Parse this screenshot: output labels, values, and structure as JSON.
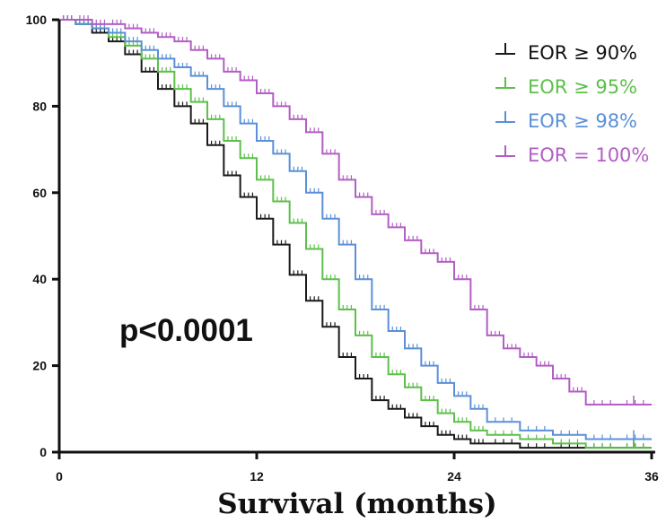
{
  "chart_data": {
    "type": "line",
    "subtype": "kaplan-meier-step",
    "xlabel": "Survival (months)",
    "ylabel": "",
    "xlim": [
      0,
      36
    ],
    "ylim": [
      0,
      100
    ],
    "xticks": [
      "0",
      "12",
      "24",
      "36"
    ],
    "yticks": [
      "0",
      "20",
      "40",
      "60",
      "80",
      "100"
    ],
    "grid": false,
    "legend_position": "top-right",
    "annotations": [
      "p<0.0001"
    ],
    "series": [
      {
        "name": "EOR ≥ 90%",
        "color": "#1a1a1a",
        "x": [
          0,
          1,
          2,
          3,
          4,
          5,
          6,
          7,
          8,
          9,
          10,
          11,
          12,
          13,
          14,
          15,
          16,
          17,
          18,
          19,
          20,
          21,
          22,
          23,
          24,
          25,
          26,
          28,
          30,
          32,
          34,
          36
        ],
        "y": [
          100,
          99,
          97,
          95,
          92,
          88,
          84,
          80,
          76,
          71,
          64,
          59,
          54,
          48,
          41,
          35,
          29,
          22,
          17,
          12,
          10,
          8,
          6,
          4,
          3,
          2,
          2,
          1,
          1,
          1,
          1,
          1
        ]
      },
      {
        "name": "EOR ≥ 95%",
        "color": "#5cc04a",
        "x": [
          0,
          1,
          2,
          3,
          4,
          5,
          6,
          7,
          8,
          9,
          10,
          11,
          12,
          13,
          14,
          15,
          16,
          17,
          18,
          19,
          20,
          21,
          22,
          23,
          24,
          25,
          26,
          28,
          30,
          32,
          34,
          36
        ],
        "y": [
          100,
          99,
          98,
          96,
          94,
          91,
          88,
          84,
          81,
          77,
          72,
          68,
          63,
          58,
          53,
          47,
          40,
          33,
          27,
          22,
          18,
          15,
          12,
          9,
          7,
          5,
          4,
          3,
          2,
          1,
          1,
          1
        ]
      },
      {
        "name": "EOR ≥ 98%",
        "color": "#5b90d8",
        "x": [
          0,
          1,
          2,
          3,
          4,
          5,
          6,
          7,
          8,
          9,
          10,
          11,
          12,
          13,
          14,
          15,
          16,
          17,
          18,
          19,
          20,
          21,
          22,
          23,
          24,
          25,
          26,
          28,
          30,
          32,
          34,
          36
        ],
        "y": [
          100,
          99,
          98,
          97,
          95,
          93,
          91,
          89,
          87,
          84,
          80,
          76,
          72,
          69,
          65,
          60,
          54,
          48,
          40,
          33,
          28,
          24,
          20,
          16,
          13,
          10,
          7,
          5,
          4,
          3,
          3,
          3
        ]
      },
      {
        "name": "EOR = 100%",
        "color": "#b25ec4",
        "x": [
          0,
          1,
          2,
          3,
          4,
          5,
          6,
          7,
          8,
          9,
          10,
          11,
          12,
          13,
          14,
          15,
          16,
          17,
          18,
          19,
          20,
          21,
          22,
          23,
          24,
          25,
          26,
          27,
          28,
          29,
          30,
          31,
          32,
          34,
          36
        ],
        "y": [
          100,
          100,
          99,
          99,
          98,
          97,
          96,
          95,
          93,
          91,
          88,
          86,
          83,
          80,
          77,
          74,
          69,
          63,
          59,
          55,
          52,
          49,
          46,
          44,
          40,
          33,
          27,
          24,
          22,
          20,
          17,
          14,
          11,
          11,
          11
        ]
      }
    ]
  }
}
